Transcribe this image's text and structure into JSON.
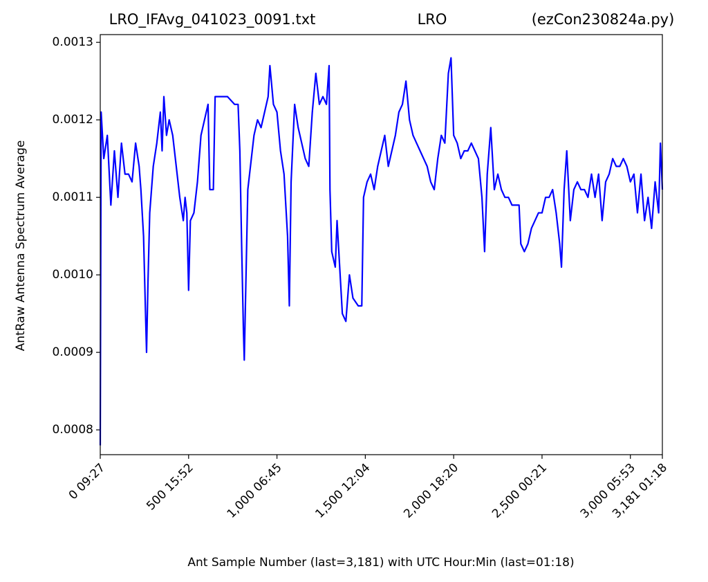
{
  "chart_data": {
    "type": "line",
    "title_left": "LRO_IFAvg_041023_0091.txt",
    "title_center": "LRO",
    "title_right": "(ezCon230824a.py)",
    "xlabel": "Ant Sample Number (last=3,181) with UTC Hour:Min (last=01:18)",
    "ylabel": "AntRaw Antenna Spectrum Average",
    "color": "#0000ff",
    "xlim": [
      0,
      3181
    ],
    "ylim": [
      0.000768,
      0.00131
    ],
    "xticks": [
      {
        "value": 0,
        "label": "0  09:27"
      },
      {
        "value": 500,
        "label": "500  15:52"
      },
      {
        "value": 1000,
        "label": "1,000  06:45"
      },
      {
        "value": 1500,
        "label": "1,500  12:04"
      },
      {
        "value": 2000,
        "label": "2,000  18:20"
      },
      {
        "value": 2500,
        "label": "2,500  00:21"
      },
      {
        "value": 3000,
        "label": "3,000  05:53"
      },
      {
        "value": 3181,
        "label": "3,181  01:18"
      }
    ],
    "yticks": [
      0.0008,
      0.0009,
      {
        "value": 0.001,
        "label": "0.0010"
      },
      0.0011,
      0.0012,
      0.0013
    ],
    "x": [
      0,
      5,
      20,
      40,
      60,
      80,
      100,
      120,
      140,
      160,
      180,
      200,
      220,
      230,
      245,
      255,
      262,
      270,
      280,
      300,
      320,
      340,
      350,
      360,
      375,
      390,
      410,
      430,
      450,
      470,
      480,
      490,
      500,
      510,
      530,
      550,
      570,
      590,
      610,
      620,
      640,
      650,
      680,
      720,
      760,
      780,
      790,
      800,
      810,
      815,
      825,
      835,
      850,
      870,
      890,
      910,
      930,
      950,
      960,
      980,
      1000,
      1020,
      1040,
      1060,
      1070,
      1080,
      1100,
      1120,
      1140,
      1160,
      1180,
      1200,
      1220,
      1240,
      1260,
      1280,
      1295,
      1300,
      1310,
      1330,
      1340,
      1360,
      1370,
      1390,
      1410,
      1430,
      1460,
      1480,
      1490,
      1510,
      1530,
      1550,
      1570,
      1590,
      1610,
      1630,
      1650,
      1670,
      1690,
      1710,
      1730,
      1750,
      1770,
      1790,
      1810,
      1830,
      1850,
      1870,
      1890,
      1910,
      1930,
      1950,
      1970,
      1985,
      2000,
      2020,
      2040,
      2060,
      2080,
      2100,
      2120,
      2140,
      2160,
      2175,
      2190,
      2210,
      2230,
      2250,
      2270,
      2290,
      2310,
      2330,
      2350,
      2370,
      2380,
      2400,
      2420,
      2440,
      2460,
      2480,
      2500,
      2520,
      2540,
      2560,
      2580,
      2600,
      2610,
      2625,
      2640,
      2660,
      2680,
      2700,
      2720,
      2740,
      2760,
      2780,
      2800,
      2820,
      2840,
      2860,
      2880,
      2900,
      2920,
      2940,
      2960,
      2980,
      3000,
      3020,
      3040,
      3060,
      3080,
      3100,
      3120,
      3140,
      3160,
      3170,
      3181
    ],
    "values": [
      0.00078,
      0.00121,
      0.00115,
      0.00118,
      0.00109,
      0.00116,
      0.0011,
      0.00117,
      0.00113,
      0.00113,
      0.00112,
      0.00117,
      0.00114,
      0.00111,
      0.00105,
      0.00096,
      0.0009,
      0.00099,
      0.00108,
      0.00114,
      0.00117,
      0.00121,
      0.00116,
      0.00123,
      0.00118,
      0.0012,
      0.00118,
      0.00114,
      0.0011,
      0.00107,
      0.0011,
      0.00108,
      0.00098,
      0.00107,
      0.00108,
      0.00112,
      0.00118,
      0.0012,
      0.00122,
      0.00111,
      0.00111,
      0.00123,
      0.00123,
      0.00123,
      0.00122,
      0.00122,
      0.00116,
      0.00104,
      0.00093,
      0.00089,
      0.001,
      0.00111,
      0.00114,
      0.00118,
      0.0012,
      0.00119,
      0.00121,
      0.00123,
      0.00127,
      0.00122,
      0.00121,
      0.00116,
      0.00113,
      0.00105,
      0.00096,
      0.00112,
      0.00122,
      0.00119,
      0.00117,
      0.00115,
      0.00114,
      0.00121,
      0.00126,
      0.00122,
      0.00123,
      0.00122,
      0.00127,
      0.00111,
      0.00103,
      0.00101,
      0.00107,
      0.00099,
      0.00095,
      0.00094,
      0.001,
      0.00097,
      0.00096,
      0.00096,
      0.0011,
      0.00112,
      0.00113,
      0.00111,
      0.00114,
      0.00116,
      0.00118,
      0.00114,
      0.00116,
      0.00118,
      0.00121,
      0.00122,
      0.00125,
      0.0012,
      0.00118,
      0.00117,
      0.00116,
      0.00115,
      0.00114,
      0.00112,
      0.00111,
      0.00115,
      0.00118,
      0.00117,
      0.00126,
      0.00128,
      0.00118,
      0.00117,
      0.00115,
      0.00116,
      0.00116,
      0.00117,
      0.00116,
      0.00115,
      0.0011,
      0.00103,
      0.00113,
      0.00119,
      0.00111,
      0.00113,
      0.00111,
      0.0011,
      0.0011,
      0.00109,
      0.00109,
      0.00109,
      0.00104,
      0.00103,
      0.00104,
      0.00106,
      0.00107,
      0.00108,
      0.00108,
      0.0011,
      0.0011,
      0.00111,
      0.00108,
      0.00104,
      0.00101,
      0.00111,
      0.00116,
      0.00107,
      0.00111,
      0.00112,
      0.00111,
      0.00111,
      0.0011,
      0.00113,
      0.0011,
      0.00113,
      0.00107,
      0.00112,
      0.00113,
      0.00115,
      0.00114,
      0.00114,
      0.00115,
      0.00114,
      0.00112,
      0.00113,
      0.00108,
      0.00113,
      0.00107,
      0.0011,
      0.00106,
      0.00112,
      0.00108,
      0.00117,
      0.00111
    ]
  }
}
